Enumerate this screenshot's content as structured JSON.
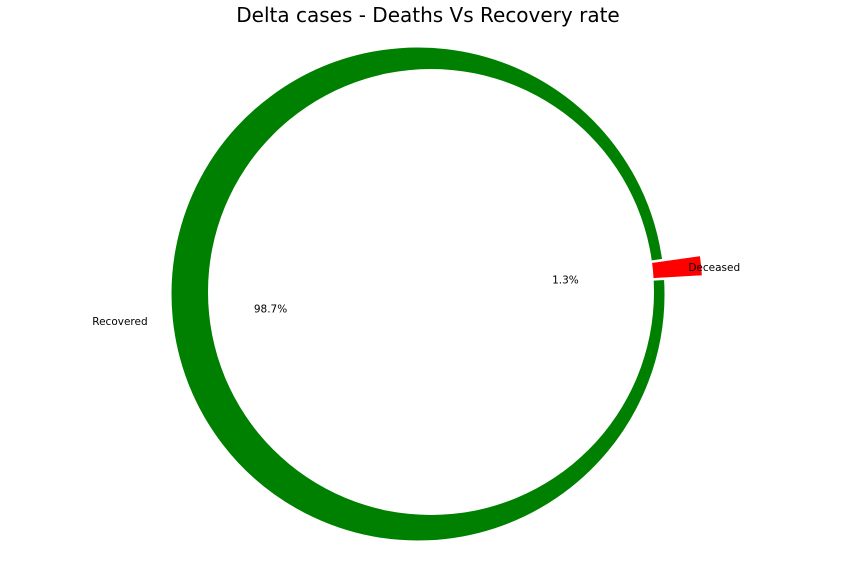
{
  "chart_data": {
    "type": "pie",
    "style": "donut",
    "title": "Delta cases - Deaths Vs Recovery rate",
    "slices": [
      {
        "label": "Recovered",
        "value": 98.7,
        "percent_label": "98.7%",
        "color": "#008000",
        "exploded": false
      },
      {
        "label": "Deceased",
        "value": 1.3,
        "percent_label": "1.3%",
        "color": "#ff0000",
        "exploded": true
      }
    ],
    "center_hole_color": "#ffffff",
    "legend": "none"
  }
}
